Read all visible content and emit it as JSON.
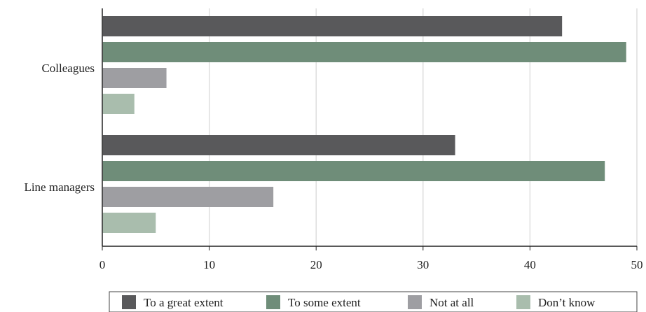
{
  "chart_data": {
    "type": "bar",
    "orientation": "horizontal",
    "title": "",
    "xlabel": "",
    "ylabel": "",
    "categories": [
      "Colleagues",
      "Line managers"
    ],
    "xlim": [
      0,
      50
    ],
    "x_ticks": [
      "0",
      "10",
      "20",
      "30",
      "40",
      "50"
    ],
    "grid": true,
    "legend_position": "bottom",
    "series": [
      {
        "name": "To a great extent",
        "color": "#59595b",
        "values": [
          43,
          33
        ]
      },
      {
        "name": "To some extent",
        "color": "#6f8d79",
        "values": [
          49,
          47
        ]
      },
      {
        "name": "Not at all",
        "color": "#9e9ea2",
        "values": [
          6,
          16
        ]
      },
      {
        "name": "Don’t know",
        "color": "#a9bdad",
        "values": [
          3,
          5
        ]
      }
    ]
  }
}
